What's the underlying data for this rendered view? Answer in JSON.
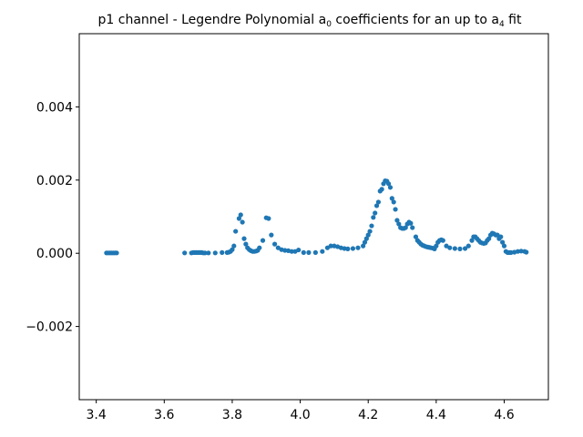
{
  "chart_data": {
    "type": "scatter",
    "title": {
      "prefix": "p1 channel - Legendre Polynomial a",
      "sub1": "0",
      "middle": " coefficients for an up to a",
      "sub2": "4",
      "suffix": " fit"
    },
    "xlabel": "",
    "ylabel": "",
    "xlim": [
      3.35,
      4.73
    ],
    "ylim": [
      -0.004,
      0.006
    ],
    "xticks": [
      {
        "value": 3.4,
        "label": "3.4"
      },
      {
        "value": 3.6,
        "label": "3.6"
      },
      {
        "value": 3.8,
        "label": "3.8"
      },
      {
        "value": 4.0,
        "label": "4.0"
      },
      {
        "value": 4.2,
        "label": "4.2"
      },
      {
        "value": 4.4,
        "label": "4.4"
      },
      {
        "value": 4.6,
        "label": "4.6"
      }
    ],
    "yticks": [
      {
        "value": -0.002,
        "label": "−0.002"
      },
      {
        "value": 0.0,
        "label": "0.000"
      },
      {
        "value": 0.002,
        "label": "0.002"
      },
      {
        "value": 0.004,
        "label": "0.004"
      }
    ],
    "grid": false,
    "legend": "none",
    "marker_color": "#1f77b4",
    "points": [
      [
        3.43,
        1e-05
      ],
      [
        3.435,
        1e-05
      ],
      [
        3.44,
        1e-05
      ],
      [
        3.445,
        1e-05
      ],
      [
        3.45,
        1e-05
      ],
      [
        3.455,
        1e-05
      ],
      [
        3.46,
        1e-05
      ],
      [
        3.66,
        1e-05
      ],
      [
        3.68,
        1e-05
      ],
      [
        3.685,
        2e-05
      ],
      [
        3.69,
        2e-05
      ],
      [
        3.695,
        2e-05
      ],
      [
        3.7,
        2e-05
      ],
      [
        3.705,
        2e-05
      ],
      [
        3.71,
        2e-05
      ],
      [
        3.715,
        1e-05
      ],
      [
        3.72,
        1e-05
      ],
      [
        3.73,
        1e-05
      ],
      [
        3.75,
        1e-05
      ],
      [
        3.77,
        2e-05
      ],
      [
        3.785,
        2e-05
      ],
      [
        3.79,
        3e-05
      ],
      [
        3.795,
        5e-05
      ],
      [
        3.8,
        0.0001
      ],
      [
        3.805,
        0.0002
      ],
      [
        3.81,
        0.0006
      ],
      [
        3.82,
        0.00095
      ],
      [
        3.825,
        0.00105
      ],
      [
        3.83,
        0.00085
      ],
      [
        3.835,
        0.0004
      ],
      [
        3.84,
        0.00025
      ],
      [
        3.845,
        0.00015
      ],
      [
        3.85,
        0.0001
      ],
      [
        3.855,
        7e-05
      ],
      [
        3.86,
        5e-05
      ],
      [
        3.865,
        5e-05
      ],
      [
        3.87,
        6e-05
      ],
      [
        3.875,
        8e-05
      ],
      [
        3.88,
        0.00015
      ],
      [
        3.89,
        0.00035
      ],
      [
        3.9,
        0.00097
      ],
      [
        3.907,
        0.00095
      ],
      [
        3.915,
        0.0005
      ],
      [
        3.925,
        0.00025
      ],
      [
        3.935,
        0.00015
      ],
      [
        3.945,
        0.0001
      ],
      [
        3.955,
        8e-05
      ],
      [
        3.965,
        7e-05
      ],
      [
        3.975,
        5e-05
      ],
      [
        3.985,
        5e-05
      ],
      [
        3.995,
        9e-05
      ],
      [
        4.01,
        2e-05
      ],
      [
        4.025,
        2e-05
      ],
      [
        4.045,
        2e-05
      ],
      [
        4.065,
        5e-05
      ],
      [
        4.08,
        0.00015
      ],
      [
        4.09,
        0.0002
      ],
      [
        4.1,
        0.0002
      ],
      [
        4.11,
        0.00018
      ],
      [
        4.12,
        0.00015
      ],
      [
        4.13,
        0.00013
      ],
      [
        4.14,
        0.00012
      ],
      [
        4.155,
        0.00013
      ],
      [
        4.17,
        0.00015
      ],
      [
        4.185,
        0.0002
      ],
      [
        4.19,
        0.0003
      ],
      [
        4.195,
        0.0004
      ],
      [
        4.2,
        0.0005
      ],
      [
        4.205,
        0.0006
      ],
      [
        4.21,
        0.00075
      ],
      [
        4.215,
        0.00098
      ],
      [
        4.22,
        0.0011
      ],
      [
        4.225,
        0.0013
      ],
      [
        4.23,
        0.0014
      ],
      [
        4.235,
        0.0017
      ],
      [
        4.24,
        0.00175
      ],
      [
        4.245,
        0.0019
      ],
      [
        4.25,
        0.00198
      ],
      [
        4.255,
        0.00197
      ],
      [
        4.26,
        0.0019
      ],
      [
        4.265,
        0.0018
      ],
      [
        4.27,
        0.0015
      ],
      [
        4.275,
        0.0014
      ],
      [
        4.28,
        0.0012
      ],
      [
        4.285,
        0.0009
      ],
      [
        4.29,
        0.0008
      ],
      [
        4.295,
        0.0007
      ],
      [
        4.3,
        0.00068
      ],
      [
        4.305,
        0.00068
      ],
      [
        4.31,
        0.0007
      ],
      [
        4.315,
        0.0008
      ],
      [
        4.32,
        0.00085
      ],
      [
        4.325,
        0.00082
      ],
      [
        4.33,
        0.0007
      ],
      [
        4.34,
        0.00045
      ],
      [
        4.345,
        0.00035
      ],
      [
        4.35,
        0.0003
      ],
      [
        4.355,
        0.00025
      ],
      [
        4.36,
        0.00022
      ],
      [
        4.365,
        0.0002
      ],
      [
        4.37,
        0.00018
      ],
      [
        4.375,
        0.00017
      ],
      [
        4.38,
        0.00016
      ],
      [
        4.385,
        0.00015
      ],
      [
        4.39,
        0.00014
      ],
      [
        4.395,
        0.00012
      ],
      [
        4.4,
        0.0002
      ],
      [
        4.405,
        0.0003
      ],
      [
        4.41,
        0.00035
      ],
      [
        4.415,
        0.00037
      ],
      [
        4.42,
        0.00035
      ],
      [
        4.43,
        0.0002
      ],
      [
        4.44,
        0.00015
      ],
      [
        4.455,
        0.00013
      ],
      [
        4.47,
        0.00012
      ],
      [
        4.485,
        0.00013
      ],
      [
        4.495,
        0.0002
      ],
      [
        4.505,
        0.00035
      ],
      [
        4.51,
        0.00045
      ],
      [
        4.515,
        0.00045
      ],
      [
        4.52,
        0.0004
      ],
      [
        4.525,
        0.00035
      ],
      [
        4.53,
        0.0003
      ],
      [
        4.535,
        0.00028
      ],
      [
        4.54,
        0.00027
      ],
      [
        4.545,
        0.00028
      ],
      [
        4.55,
        0.00035
      ],
      [
        4.555,
        0.0004
      ],
      [
        4.56,
        0.0005
      ],
      [
        4.565,
        0.00055
      ],
      [
        4.57,
        0.00053
      ],
      [
        4.575,
        0.0005
      ],
      [
        4.58,
        0.0005
      ],
      [
        4.585,
        0.0004
      ],
      [
        4.59,
        0.00045
      ],
      [
        4.595,
        0.0003
      ],
      [
        4.6,
        0.0002
      ],
      [
        4.605,
        5e-05
      ],
      [
        4.61,
        2e-05
      ],
      [
        4.615,
        2e-05
      ],
      [
        4.62,
        2e-05
      ],
      [
        4.63,
        3e-05
      ],
      [
        4.64,
        5e-05
      ],
      [
        4.65,
        6e-05
      ],
      [
        4.66,
        5e-05
      ],
      [
        4.665,
        3e-05
      ]
    ]
  }
}
